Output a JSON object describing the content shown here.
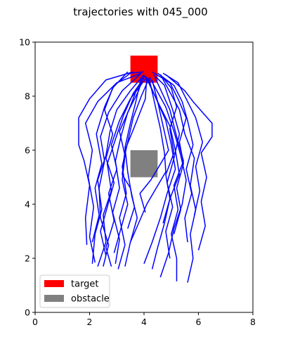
{
  "chart_data": {
    "type": "line",
    "title": "trajectories with 045_000",
    "xlabel": "",
    "ylabel": "",
    "xlim": [
      0,
      8
    ],
    "ylim": [
      0,
      10
    ],
    "xticks": [
      "0",
      "2",
      "4",
      "6",
      "8"
    ],
    "yticks": [
      "0",
      "2",
      "4",
      "6",
      "8",
      "10"
    ],
    "grid": false,
    "legend_placement": "lower-left",
    "legend": [
      {
        "label": "target",
        "color": "#ff0000"
      },
      {
        "label": "obstacle",
        "color": "#808080"
      }
    ],
    "target": {
      "x0": 3.5,
      "x1": 4.5,
      "y0": 8.5,
      "y1": 9.5,
      "color": "#ff0000"
    },
    "obstacle": {
      "x0": 3.5,
      "x1": 4.5,
      "y0": 5.0,
      "y1": 6.0,
      "color": "#808080"
    },
    "trajectory_color": "#0000ff",
    "trajectories": [
      [
        [
          2.1,
          1.8
        ],
        [
          2.2,
          2.9
        ],
        [
          2.45,
          3.8
        ],
        [
          2.3,
          4.9
        ],
        [
          2.6,
          5.8
        ],
        [
          2.75,
          6.7
        ],
        [
          3.0,
          7.5
        ],
        [
          3.5,
          8.2
        ],
        [
          4.0,
          8.8
        ]
      ],
      [
        [
          2.3,
          1.7
        ],
        [
          2.6,
          2.6
        ],
        [
          2.5,
          3.6
        ],
        [
          2.8,
          4.5
        ],
        [
          2.65,
          5.5
        ],
        [
          2.95,
          6.4
        ],
        [
          3.25,
          7.3
        ],
        [
          3.6,
          8.1
        ],
        [
          4.05,
          8.75
        ]
      ],
      [
        [
          2.5,
          1.7
        ],
        [
          2.7,
          2.5
        ],
        [
          2.4,
          3.5
        ],
        [
          2.35,
          4.6
        ],
        [
          2.55,
          5.6
        ],
        [
          2.4,
          6.5
        ],
        [
          2.7,
          7.4
        ],
        [
          3.2,
          8.2
        ],
        [
          3.9,
          8.85
        ]
      ],
      [
        [
          2.8,
          1.7
        ],
        [
          2.6,
          2.4
        ],
        [
          2.9,
          3.4
        ],
        [
          2.7,
          4.4
        ],
        [
          3.0,
          5.3
        ],
        [
          2.8,
          6.2
        ],
        [
          3.1,
          7.1
        ],
        [
          3.5,
          7.9
        ],
        [
          4.1,
          8.7
        ]
      ],
      [
        [
          2.95,
          1.8
        ],
        [
          3.1,
          2.7
        ],
        [
          2.85,
          3.7
        ],
        [
          3.1,
          4.6
        ],
        [
          2.95,
          5.6
        ],
        [
          3.15,
          6.5
        ],
        [
          3.4,
          7.4
        ],
        [
          3.8,
          8.2
        ],
        [
          4.0,
          8.8
        ]
      ],
      [
        [
          3.05,
          1.6
        ],
        [
          3.3,
          2.5
        ],
        [
          3.1,
          3.5
        ],
        [
          3.35,
          4.4
        ],
        [
          3.2,
          5.4
        ],
        [
          3.4,
          6.3
        ],
        [
          3.6,
          7.2
        ],
        [
          3.9,
          8.0
        ],
        [
          4.2,
          8.7
        ]
      ],
      [
        [
          2.2,
          1.85
        ],
        [
          2.0,
          2.8
        ],
        [
          2.15,
          3.9
        ],
        [
          1.95,
          5.0
        ],
        [
          2.1,
          6.0
        ],
        [
          1.85,
          7.0
        ],
        [
          2.3,
          7.8
        ],
        [
          3.0,
          8.5
        ],
        [
          3.9,
          8.85
        ]
      ],
      [
        [
          1.9,
          2.5
        ],
        [
          1.85,
          3.5
        ],
        [
          2.0,
          4.7
        ],
        [
          1.8,
          5.6
        ],
        [
          1.6,
          6.2
        ],
        [
          1.6,
          7.2
        ],
        [
          2.0,
          7.9
        ],
        [
          2.6,
          8.6
        ],
        [
          3.6,
          8.9
        ]
      ],
      [
        [
          2.1,
          2.6
        ],
        [
          2.35,
          3.6
        ],
        [
          2.2,
          4.6
        ],
        [
          2.45,
          5.5
        ],
        [
          2.25,
          6.6
        ],
        [
          2.55,
          7.6
        ],
        [
          2.9,
          8.4
        ],
        [
          3.5,
          8.85
        ],
        [
          4.0,
          8.9
        ]
      ],
      [
        [
          2.9,
          2.2
        ],
        [
          3.15,
          3.1
        ],
        [
          3.4,
          4.0
        ],
        [
          3.2,
          4.9
        ],
        [
          3.3,
          5.8
        ],
        [
          3.1,
          6.7
        ],
        [
          3.45,
          7.5
        ],
        [
          3.75,
          8.3
        ],
        [
          4.0,
          8.7
        ]
      ],
      [
        [
          3.3,
          1.7
        ],
        [
          3.5,
          2.6
        ],
        [
          3.75,
          3.5
        ],
        [
          3.55,
          4.3
        ],
        [
          3.4,
          5.2
        ],
        [
          3.3,
          6.1
        ],
        [
          3.5,
          7.0
        ],
        [
          3.7,
          7.8
        ],
        [
          3.9,
          8.7
        ]
      ],
      [
        [
          2.6,
          2.1
        ],
        [
          2.4,
          3.0
        ],
        [
          2.65,
          3.9
        ],
        [
          2.9,
          4.8
        ],
        [
          2.6,
          5.7
        ],
        [
          2.85,
          6.6
        ],
        [
          2.55,
          7.5
        ],
        [
          2.85,
          8.3
        ],
        [
          3.4,
          8.9
        ]
      ],
      [
        [
          4.0,
          1.8
        ],
        [
          4.3,
          2.6
        ],
        [
          4.6,
          3.5
        ],
        [
          4.85,
          4.4
        ],
        [
          5.15,
          5.3
        ],
        [
          5.0,
          6.2
        ],
        [
          4.8,
          7.1
        ],
        [
          4.45,
          7.9
        ],
        [
          4.1,
          8.7
        ]
      ],
      [
        [
          4.3,
          1.6
        ],
        [
          4.5,
          2.4
        ],
        [
          4.75,
          3.3
        ],
        [
          4.95,
          4.2
        ],
        [
          5.3,
          5.1
        ],
        [
          5.15,
          6.0
        ],
        [
          4.95,
          6.9
        ],
        [
          4.55,
          7.7
        ],
        [
          4.05,
          8.75
        ]
      ],
      [
        [
          4.6,
          1.3
        ],
        [
          4.9,
          2.2
        ],
        [
          5.1,
          3.1
        ],
        [
          5.4,
          4.0
        ],
        [
          5.55,
          4.9
        ],
        [
          5.35,
          5.8
        ],
        [
          5.1,
          6.7
        ],
        [
          4.8,
          7.6
        ],
        [
          4.2,
          8.7
        ]
      ],
      [
        [
          5.2,
          1.15
        ],
        [
          5.2,
          2.0
        ],
        [
          5.0,
          2.9
        ],
        [
          5.25,
          3.8
        ],
        [
          5.1,
          4.7
        ],
        [
          5.45,
          5.6
        ],
        [
          5.2,
          6.5
        ],
        [
          4.95,
          7.5
        ],
        [
          4.4,
          8.7
        ]
      ],
      [
        [
          5.6,
          1.1
        ],
        [
          5.8,
          2.0
        ],
        [
          5.7,
          2.9
        ],
        [
          5.9,
          3.8
        ],
        [
          5.7,
          4.7
        ],
        [
          5.85,
          5.7
        ],
        [
          5.5,
          6.6
        ],
        [
          5.3,
          7.5
        ],
        [
          4.6,
          8.8
        ]
      ],
      [
        [
          5.6,
          2.6
        ],
        [
          5.5,
          3.5
        ],
        [
          5.75,
          4.4
        ],
        [
          5.55,
          5.3
        ],
        [
          5.8,
          6.2
        ],
        [
          5.6,
          7.1
        ],
        [
          5.4,
          7.8
        ],
        [
          5.1,
          8.4
        ],
        [
          4.5,
          8.85
        ]
      ],
      [
        [
          6.0,
          2.3
        ],
        [
          6.25,
          3.2
        ],
        [
          6.1,
          4.1
        ],
        [
          6.3,
          5.0
        ],
        [
          6.1,
          5.9
        ],
        [
          6.5,
          6.5
        ],
        [
          6.5,
          7.0
        ],
        [
          6.15,
          7.4
        ],
        [
          5.8,
          7.8
        ],
        [
          5.5,
          8.2
        ],
        [
          4.8,
          8.8
        ]
      ],
      [
        [
          5.1,
          2.9
        ],
        [
          5.35,
          3.8
        ],
        [
          5.2,
          4.6
        ],
        [
          5.45,
          5.5
        ],
        [
          5.3,
          6.3
        ],
        [
          5.55,
          7.2
        ],
        [
          5.25,
          7.9
        ],
        [
          4.95,
          8.5
        ],
        [
          4.3,
          8.9
        ]
      ],
      [
        [
          4.7,
          3.3
        ],
        [
          4.95,
          4.2
        ],
        [
          4.8,
          5.1
        ],
        [
          5.1,
          5.9
        ],
        [
          4.95,
          6.8
        ],
        [
          5.2,
          7.6
        ],
        [
          5.0,
          8.3
        ],
        [
          4.6,
          8.8
        ]
      ],
      [
        [
          3.5,
          2.6
        ],
        [
          3.8,
          3.3
        ],
        [
          4.1,
          4.0
        ],
        [
          4.45,
          4.6
        ],
        [
          4.8,
          5.2
        ],
        [
          4.75,
          5.9
        ],
        [
          4.6,
          6.8
        ],
        [
          4.4,
          7.7
        ],
        [
          4.2,
          8.6
        ]
      ],
      [
        [
          4.05,
          3.7
        ],
        [
          3.85,
          4.4
        ],
        [
          4.25,
          4.9
        ],
        [
          4.55,
          5.4
        ],
        [
          4.9,
          6.0
        ],
        [
          4.7,
          6.9
        ],
        [
          4.5,
          7.8
        ],
        [
          4.3,
          8.6
        ]
      ],
      [
        [
          3.4,
          3.1
        ],
        [
          3.65,
          3.9
        ],
        [
          3.5,
          4.6
        ],
        [
          3.2,
          5.1
        ],
        [
          3.3,
          6.0
        ],
        [
          3.7,
          7.0
        ],
        [
          4.05,
          7.9
        ],
        [
          4.1,
          8.7
        ]
      ],
      [
        [
          5.85,
          3.6
        ],
        [
          6.05,
          4.5
        ],
        [
          5.9,
          5.4
        ],
        [
          6.15,
          6.3
        ],
        [
          5.9,
          7.2
        ],
        [
          5.55,
          7.9
        ],
        [
          5.25,
          8.5
        ],
        [
          4.7,
          8.85
        ]
      ],
      [
        [
          4.95,
          2.0
        ],
        [
          4.8,
          3.0
        ],
        [
          5.05,
          3.9
        ],
        [
          4.85,
          4.8
        ],
        [
          5.1,
          5.7
        ],
        [
          5.3,
          6.6
        ],
        [
          5.05,
          7.5
        ],
        [
          4.75,
          8.4
        ],
        [
          4.35,
          8.8
        ]
      ]
    ]
  }
}
